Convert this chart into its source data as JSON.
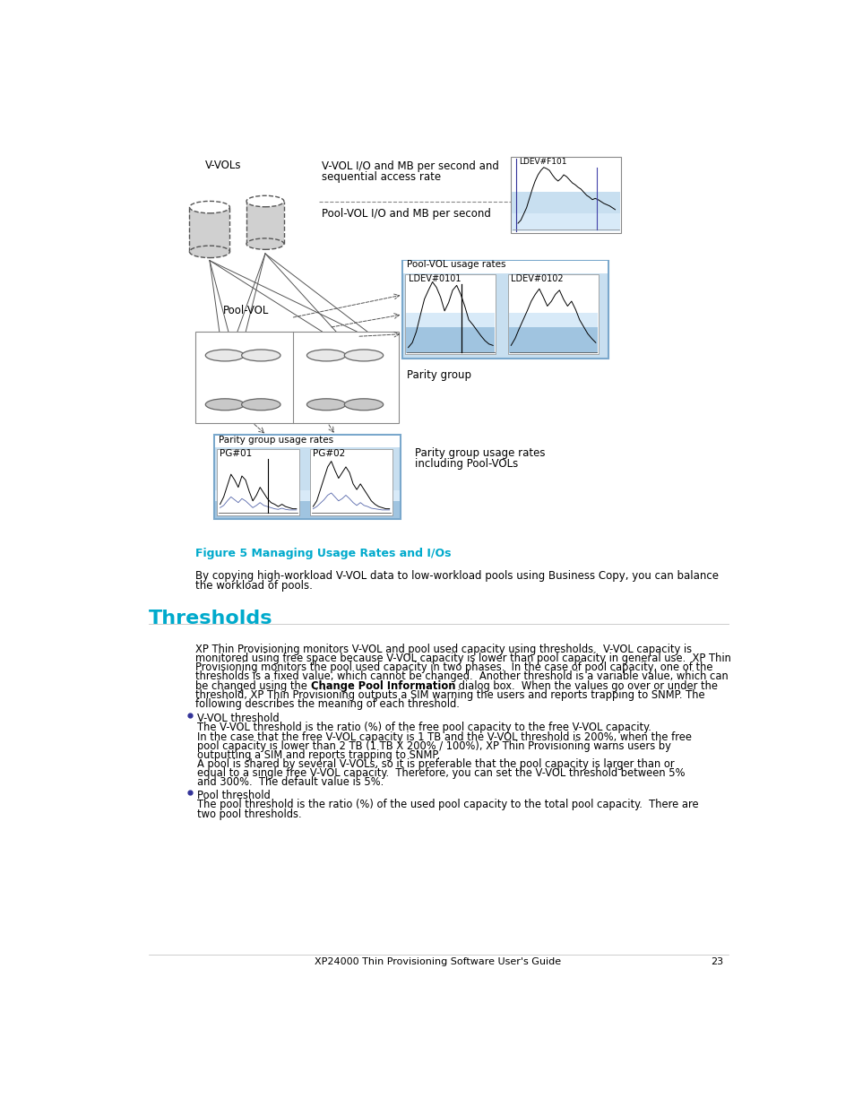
{
  "bg_color": "#ffffff",
  "page_width": 9.54,
  "page_height": 12.35,
  "figure_caption": "Figure 5 Managing Usage Rates and I/Os",
  "caption_color": "#00aacc",
  "below_caption_text1": "By copying high-workload V-VOL data to low-workload pools using Business Copy, you can balance",
  "below_caption_text2": "the workload of pools.",
  "section_title": "Thresholds",
  "section_title_color": "#00aacc",
  "body_lines": [
    "XP Thin Provisioning monitors V-VOL and pool used capacity using thresholds.  V-VOL capacity is",
    "monitored using free space because V-VOL capacity is lower than pool capacity in general use.  XP Thin",
    "Provisioning monitors the pool used capacity in two phases.  In the case of pool capacity, one of the",
    "thresholds is a fixed value, which cannot be changed.  Another threshold is a variable value, which can",
    "be changed using the [bold]Change Pool Information[/bold] dialog box.  When the values go over or under the",
    "threshold, XP Thin Provisioning outputs a SIM warning the users and reports trapping to SNMP. The",
    "following describes the meaning of each threshold."
  ],
  "bullet1_title": "V-VOL threshold",
  "bullet1_body": [
    "The V-VOL threshold is the ratio (%) of the free pool capacity to the free V-VOL capacity.",
    "In the case that the free V-VOL capacity is 1 TB and the V-VOL threshold is 200%, when the free",
    "pool capacity is lower than 2 TB (1 TB X 200% / 100%), XP Thin Provisioning warns users by",
    "outputting a SIM and reports trapping to SNMP.",
    "A pool is shared by several V-VOLs, so it is preferable that the pool capacity is larger than or",
    "equal to a single free V-VOL capacity.  Therefore, you can set the V-VOL threshold between 5%",
    "and 300%.  The default value is 5%."
  ],
  "bullet2_title": "Pool threshold",
  "bullet2_body": [
    "The pool threshold is the ratio (%) of the used pool capacity to the total pool capacity.  There are",
    "two pool thresholds."
  ],
  "footer_text": "XP24000 Thin Provisioning Software User's Guide",
  "footer_page": "23",
  "label_vvols": "V-VOLs",
  "label_vvol_io1": "V-VOL I/O and MB per second and",
  "label_vvol_io2": "sequential access rate",
  "label_poolvol_io": "Pool-VOL I/O and MB per second",
  "label_poolvol": "Pool-VOL",
  "label_parity_group": "Parity group",
  "label_parity_usage1": "Parity group usage rates",
  "label_parity_usage2": "including Pool-VOLs",
  "label_poolvol_usage": "Pool-VOL usage rates",
  "label_ldev0101": "LDEV#0101",
  "label_ldev0102": "LDEV#0102",
  "label_ldevf101": "LDEV#F101",
  "label_pg01": "PG#01",
  "label_pg02": "PG#02",
  "label_parity_usage_box": "Parity group usage rates",
  "light_blue": "#c8dff0",
  "medium_blue": "#a0c4e0",
  "pale_blue": "#d8eaf8",
  "light_purple": "#c8c8e8",
  "box_border": "#888888",
  "gray_cyl": "#c0c0c0",
  "dark_gray": "#666666"
}
